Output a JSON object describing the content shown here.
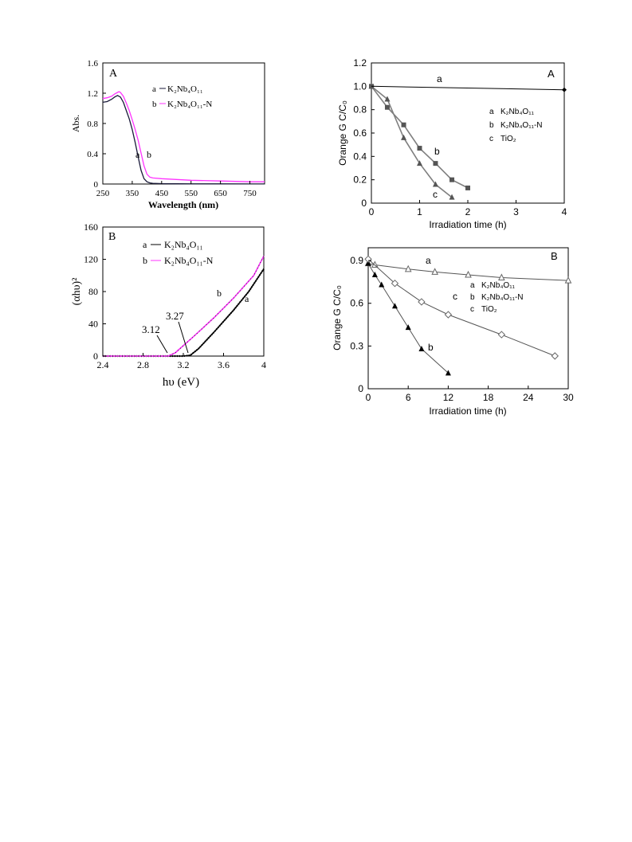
{
  "colors": {
    "black": "#000000",
    "magenta": "#ff33ff",
    "gray": "#7f7f7f",
    "dark": "#1a1a3a"
  },
  "charts": {
    "tl": {
      "panel": "A",
      "xlabel": "Wavelength (nm)",
      "ylabel": "Abs.",
      "xticks": [
        "250",
        "350",
        "450",
        "550",
        "650",
        "750"
      ],
      "yticks": [
        "0",
        "0.4",
        "0.8",
        "1.2",
        "1.6"
      ],
      "legend": [
        {
          "key": "a",
          "name": "K₂Nb₄O₁₁"
        },
        {
          "key": "b",
          "name": "K₂Nb₄O₁₁-N"
        }
      ],
      "curve_labels": [
        "a",
        "b"
      ]
    },
    "bl": {
      "panel": "B",
      "xlabel": "hυ (eV)",
      "ylabel": "(αhυ)²",
      "xticks": [
        "2.4",
        "2.8",
        "3.2",
        "3.6",
        "4"
      ],
      "yticks": [
        "0",
        "40",
        "80",
        "120",
        "160"
      ],
      "legend": [
        {
          "key": "a",
          "name": "K₂Nb₄O₁₁"
        },
        {
          "key": "b",
          "name": "K₂Nb₄O₁₁-N"
        }
      ],
      "annotations": [
        "3.12",
        "3.27"
      ],
      "curve_labels": [
        "b",
        "a"
      ]
    },
    "tr": {
      "panel": "A",
      "xlabel": "Irradiation time (h)",
      "ylabel": "Orange G C/C₀",
      "xticks": [
        "0",
        "1",
        "2",
        "3",
        "4"
      ],
      "yticks": [
        "0",
        "0.2",
        "0.4",
        "0.6",
        "0.8",
        "1.0",
        "1.2"
      ],
      "legend": [
        {
          "key": "a",
          "name": "K₂Nb₄O₁₁"
        },
        {
          "key": "b",
          "name": "K₂Nb₄O₁₁-N"
        },
        {
          "key": "c",
          "name": "TiO₂"
        }
      ],
      "curve_labels": [
        "a",
        "b",
        "c"
      ]
    },
    "br": {
      "panel": "B",
      "xlabel": "Irradiation time (h)",
      "ylabel": "Orange G C/C₀",
      "xticks": [
        "0",
        "6",
        "12",
        "18",
        "24",
        "30"
      ],
      "yticks": [
        "0",
        "0.3",
        "0.6",
        "0.9"
      ],
      "legend": [
        {
          "key": "a",
          "name": "K₂Nb₄O₁₁"
        },
        {
          "key": "b",
          "name": "K₂Nb₄O₁₁-N"
        },
        {
          "key": "c",
          "name": "TiO₂"
        }
      ],
      "curve_labels": [
        "a",
        "c",
        "b"
      ]
    }
  },
  "chart_data": [
    {
      "type": "line",
      "panel": "A",
      "xlabel": "Wavelength (nm)",
      "ylabel": "Abs.",
      "xlim": [
        250,
        800
      ],
      "ylim": [
        0,
        1.6
      ],
      "series": [
        {
          "name": "K₂Nb₄O₁₁",
          "color": "#1a1a3a",
          "x": [
            250,
            265,
            280,
            290,
            300,
            310,
            320,
            330,
            340,
            350,
            360,
            370,
            380,
            390,
            400,
            410,
            420,
            450,
            500,
            550,
            650,
            750,
            800
          ],
          "y": [
            1.08,
            1.09,
            1.12,
            1.15,
            1.17,
            1.15,
            1.08,
            0.97,
            0.86,
            0.72,
            0.55,
            0.36,
            0.18,
            0.07,
            0.03,
            0.015,
            0.01,
            0.005,
            0.003,
            0.002,
            0.002,
            0.001,
            0.001
          ]
        },
        {
          "name": "K₂Nb₄O₁₁-N",
          "color": "#ff33ff",
          "x": [
            250,
            265,
            280,
            290,
            300,
            305,
            310,
            320,
            330,
            340,
            350,
            360,
            370,
            380,
            390,
            400,
            410,
            420,
            450,
            500,
            550,
            650,
            750,
            800
          ],
          "y": [
            1.13,
            1.14,
            1.16,
            1.19,
            1.21,
            1.22,
            1.21,
            1.16,
            1.07,
            0.97,
            0.85,
            0.72,
            0.58,
            0.41,
            0.24,
            0.13,
            0.09,
            0.08,
            0.07,
            0.06,
            0.05,
            0.04,
            0.03,
            0.03
          ]
        }
      ]
    },
    {
      "type": "line",
      "panel": "B",
      "xlabel": "hυ (eV)",
      "ylabel": "(αhυ)²",
      "xlim": [
        2.4,
        4.0
      ],
      "ylim": [
        0,
        160
      ],
      "series": [
        {
          "name": "K₂Nb₄O₁₁",
          "color": "#000000",
          "x": [
            2.4,
            3.2,
            3.27,
            3.35,
            3.5,
            3.7,
            3.85,
            4.0
          ],
          "y": [
            0,
            0,
            1,
            9,
            29,
            57,
            80,
            108
          ]
        },
        {
          "name": "K₂Nb₄O₁₁-N",
          "color": "#ff33ff",
          "x": [
            2.4,
            3.05,
            3.12,
            3.3,
            3.5,
            3.7,
            3.9,
            4.0
          ],
          "y": [
            0,
            0,
            4,
            24,
            47,
            72,
            100,
            124
          ]
        }
      ],
      "annotations": [
        {
          "text": "3.12",
          "x": 3.12
        },
        {
          "text": "3.27",
          "x": 3.27
        }
      ]
    },
    {
      "type": "line",
      "panel": "A",
      "xlabel": "Irradiation time (h)",
      "ylabel": "Orange G C/C₀",
      "xlim": [
        0,
        4
      ],
      "ylim": [
        0,
        1.2
      ],
      "series": [
        {
          "name": "K₂Nb₄O₁₁",
          "marker": "diamond",
          "x": [
            0,
            4
          ],
          "y": [
            1.0,
            0.97
          ]
        },
        {
          "name": "K₂Nb₄O₁₁-N",
          "marker": "square",
          "x": [
            0,
            0.33,
            0.67,
            1.0,
            1.33,
            1.67,
            2.0
          ],
          "y": [
            1.0,
            0.82,
            0.67,
            0.47,
            0.34,
            0.2,
            0.13
          ]
        },
        {
          "name": "TiO₂",
          "marker": "triangle",
          "x": [
            0,
            0.33,
            0.67,
            1.0,
            1.33,
            1.67
          ],
          "y": [
            1.0,
            0.89,
            0.56,
            0.34,
            0.16,
            0.05
          ]
        }
      ]
    },
    {
      "type": "line",
      "panel": "B",
      "xlabel": "Irradiation time (h)",
      "ylabel": "Orange G C/C₀",
      "xlim": [
        0,
        30
      ],
      "ylim": [
        0,
        0.9
      ],
      "series": [
        {
          "name": "K₂Nb₄O₁₁",
          "marker": "open-triangle",
          "x": [
            0,
            1,
            6,
            10,
            15,
            20,
            30
          ],
          "y": [
            0.88,
            0.87,
            0.84,
            0.82,
            0.8,
            0.78,
            0.76
          ]
        },
        {
          "name": "K₂Nb₄O₁₁-N",
          "marker": "filled-triangle",
          "x": [
            0,
            1,
            2,
            4,
            6,
            8,
            12
          ],
          "y": [
            0.88,
            0.8,
            0.73,
            0.58,
            0.43,
            0.28,
            0.11
          ]
        },
        {
          "name": "TiO₂",
          "marker": "open-diamond",
          "x": [
            0,
            4,
            8,
            12,
            20,
            28
          ],
          "y": [
            0.91,
            0.74,
            0.61,
            0.52,
            0.38,
            0.23
          ]
        }
      ]
    }
  ]
}
